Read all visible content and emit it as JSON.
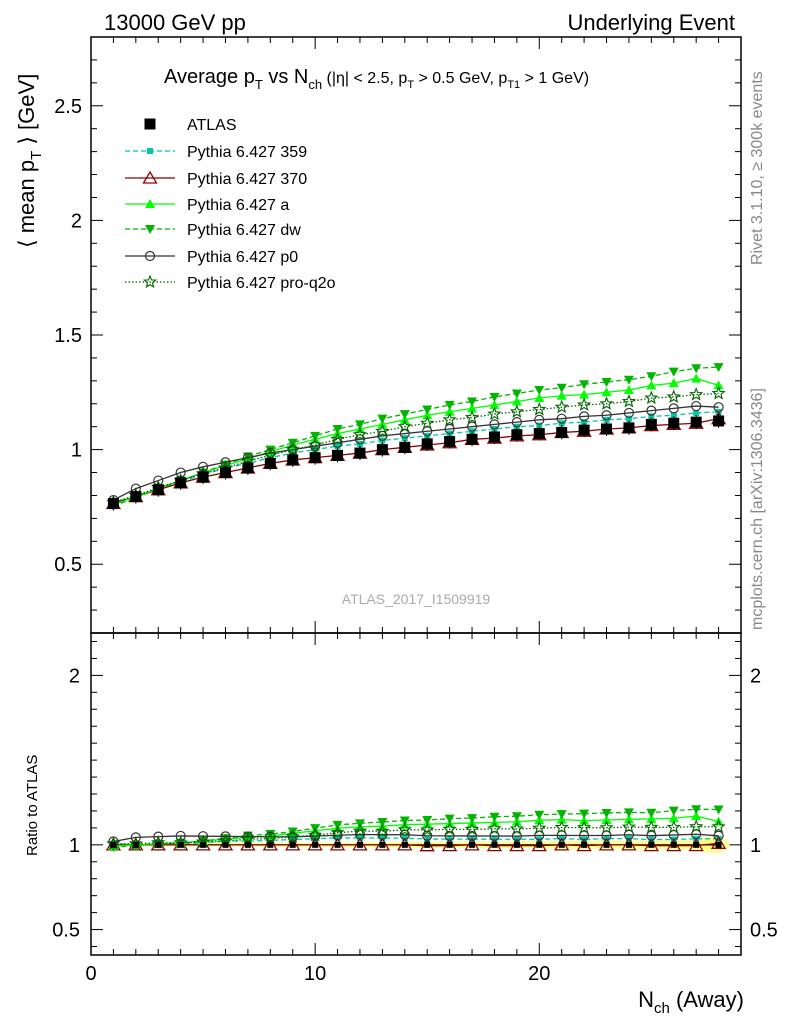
{
  "header": {
    "left": "13000 GeV pp",
    "right": "Underlying Event"
  },
  "side_text": {
    "rivet": "Rivet 3.1.10, ≥ 300k events",
    "mcplots": "mcplots.cern.ch [arXiv:1306.3436]"
  },
  "watermark": "ATLAS_2017_I1509919",
  "chart_data": {
    "type": "line",
    "title": {
      "prefix": "Average p",
      "sub1": "T",
      "mid": " vs N",
      "sub2": "ch",
      "cond1": " (|η| < 2.5, p",
      "sub3": "T",
      "cond2": " > 0.5 GeV, p",
      "sub4": "T1",
      "cond3": " > 1 GeV)"
    },
    "xlabel": {
      "main": "N",
      "sub": "ch",
      "rest": " (Away)"
    },
    "ylabel": {
      "open": "⟨ mean p",
      "sub": "T",
      "close": " ⟩ [GeV]"
    },
    "ratio_ylabel": "Ratio to ATLAS",
    "xlim": [
      0,
      29
    ],
    "ylim": [
      0.2,
      2.8
    ],
    "ratio_ylim": [
      0.35,
      2.25
    ],
    "x_ticks": [
      "0",
      "10",
      "20"
    ],
    "y_ticks": [
      "0.5",
      "1",
      "1.5",
      "2",
      "2.5"
    ],
    "ratio_ticks": [
      "0.5",
      "1",
      "2"
    ],
    "x": [
      1,
      2,
      3,
      4,
      5,
      6,
      7,
      8,
      9,
      10,
      11,
      12,
      13,
      14,
      15,
      16,
      17,
      18,
      19,
      20,
      21,
      22,
      23,
      24,
      25,
      26,
      27,
      28
    ],
    "reference": {
      "name": "ATLAS",
      "values": [
        0.765,
        0.795,
        0.825,
        0.855,
        0.88,
        0.9,
        0.92,
        0.94,
        0.955,
        0.965,
        0.975,
        0.985,
        1.0,
        1.01,
        1.025,
        1.035,
        1.045,
        1.055,
        1.065,
        1.07,
        1.075,
        1.085,
        1.09,
        1.095,
        1.11,
        1.115,
        1.12,
        1.125
      ]
    },
    "series": [
      {
        "name": "Pythia 6.427 359",
        "color": "#00c8a0",
        "dash": "5,3",
        "marker": "square-small",
        "values": [
          0.77,
          0.795,
          0.83,
          0.86,
          0.89,
          0.92,
          0.94,
          0.965,
          0.985,
          1.0,
          1.015,
          1.025,
          1.04,
          1.05,
          1.06,
          1.07,
          1.08,
          1.09,
          1.1,
          1.105,
          1.115,
          1.12,
          1.13,
          1.135,
          1.145,
          1.15,
          1.16,
          1.165
        ]
      },
      {
        "name": "Pythia 6.427 370",
        "color": "#8b0000",
        "dash": "",
        "marker": "triangle-open",
        "values": [
          0.765,
          0.795,
          0.825,
          0.855,
          0.88,
          0.9,
          0.92,
          0.94,
          0.955,
          0.965,
          0.975,
          0.985,
          1.0,
          1.01,
          1.02,
          1.03,
          1.045,
          1.05,
          1.06,
          1.065,
          1.075,
          1.08,
          1.09,
          1.095,
          1.105,
          1.11,
          1.115,
          1.135
        ]
      },
      {
        "name": "Pythia 6.427 a",
        "color": "#00ff00",
        "dash": "",
        "marker": "triangle",
        "values": [
          0.76,
          0.795,
          0.83,
          0.865,
          0.9,
          0.93,
          0.96,
          0.99,
          1.02,
          1.045,
          1.07,
          1.09,
          1.11,
          1.13,
          1.15,
          1.165,
          1.18,
          1.195,
          1.21,
          1.225,
          1.235,
          1.24,
          1.25,
          1.26,
          1.28,
          1.29,
          1.31,
          1.28
        ]
      },
      {
        "name": "Pythia 6.427 dw",
        "color": "#00b400",
        "dash": "5,3",
        "marker": "triangle-down",
        "values": [
          0.755,
          0.79,
          0.83,
          0.865,
          0.9,
          0.935,
          0.97,
          1.0,
          1.03,
          1.06,
          1.09,
          1.11,
          1.135,
          1.155,
          1.175,
          1.195,
          1.21,
          1.23,
          1.245,
          1.26,
          1.27,
          1.285,
          1.295,
          1.305,
          1.32,
          1.34,
          1.355,
          1.36
        ]
      },
      {
        "name": "Pythia 6.427 p0",
        "color": "#333333",
        "dash": "",
        "marker": "circle-open",
        "values": [
          0.78,
          0.83,
          0.865,
          0.9,
          0.925,
          0.945,
          0.965,
          0.985,
          1.0,
          1.015,
          1.03,
          1.045,
          1.06,
          1.07,
          1.08,
          1.09,
          1.1,
          1.11,
          1.12,
          1.13,
          1.135,
          1.145,
          1.15,
          1.16,
          1.17,
          1.18,
          1.19,
          1.185
        ]
      },
      {
        "name": "Pythia 6.427 pro-q2o",
        "color": "#006400",
        "dash": "1.5,2",
        "marker": "star-open",
        "values": [
          0.77,
          0.8,
          0.835,
          0.865,
          0.895,
          0.92,
          0.95,
          0.975,
          1.0,
          1.02,
          1.045,
          1.065,
          1.08,
          1.1,
          1.115,
          1.13,
          1.14,
          1.155,
          1.165,
          1.175,
          1.185,
          1.195,
          1.2,
          1.21,
          1.225,
          1.23,
          1.24,
          1.245
        ]
      }
    ],
    "legend_position": "top-left",
    "band_color": "#ffff66"
  }
}
